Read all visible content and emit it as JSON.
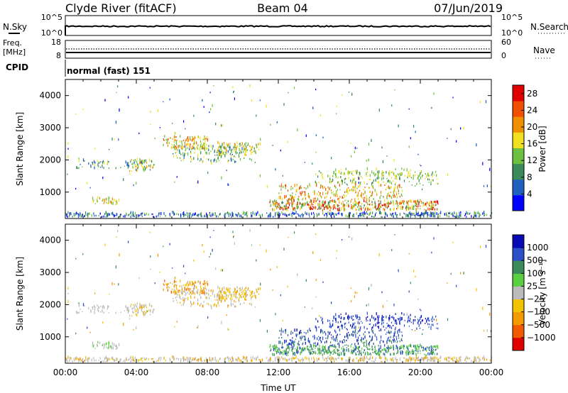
{
  "header": {
    "station": "Clyde River (fitACF)",
    "beam": "Beam 04",
    "date": "07/Jun/2019"
  },
  "noise_panel": {
    "left_label": "N.Sky",
    "right_label": "N.Search",
    "left_ticks": [
      "10^5",
      "10^0"
    ],
    "right_ticks": [
      "10^5",
      "10^0"
    ]
  },
  "freq_panel": {
    "left_label_line1": "Freq.",
    "left_label_line2": "[MHz]",
    "right_label": "Nave",
    "left_ticks": [
      "18",
      "8"
    ],
    "right_ticks": [
      "60",
      "0"
    ]
  },
  "cpid": {
    "label": "CPID",
    "value": "normal (fast) 151"
  },
  "colors": {
    "power_scale": [
      "#0000ff",
      "#2060c0",
      "#3a8a5a",
      "#6ec040",
      "#f0e020",
      "#f09000",
      "#f05000",
      "#e00000"
    ],
    "velocity_scale": [
      "#e00000",
      "#f05a00",
      "#f29a00",
      "#f2c400",
      "#bbbbbb",
      "#5ad040",
      "#3a8a5a",
      "#2c50c8",
      "#0a0ab4"
    ]
  },
  "chart_data": [
    {
      "type": "heatmap",
      "title": "Power",
      "ylabel": "Slant Range [km]",
      "ylim": [
        180,
        4500
      ],
      "xlim": [
        0,
        24
      ],
      "y_ticks": [
        1000,
        2000,
        3000,
        4000
      ],
      "colorbar_label": "Power [dB]",
      "colorbar_ticks": [
        4,
        8,
        12,
        16,
        20,
        24,
        28
      ],
      "colorbar_range": [
        0,
        30
      ]
    },
    {
      "type": "heatmap",
      "title": "Velocity",
      "ylabel": "Slant Range [km]",
      "xlabel": "Time UT",
      "ylim": [
        180,
        4500
      ],
      "xlim": [
        0,
        24
      ],
      "y_ticks": [
        1000,
        2000,
        3000,
        4000
      ],
      "x_ticks": [
        "00:00",
        "04:00",
        "08:00",
        "12:00",
        "16:00",
        "20:00",
        "00:00"
      ],
      "colorbar_label": "Velocity [m s⁻¹]",
      "colorbar_ticks": [
        "1000",
        "500",
        "100",
        "25",
        "−25",
        "−100",
        "−500",
        "−1000"
      ]
    }
  ]
}
